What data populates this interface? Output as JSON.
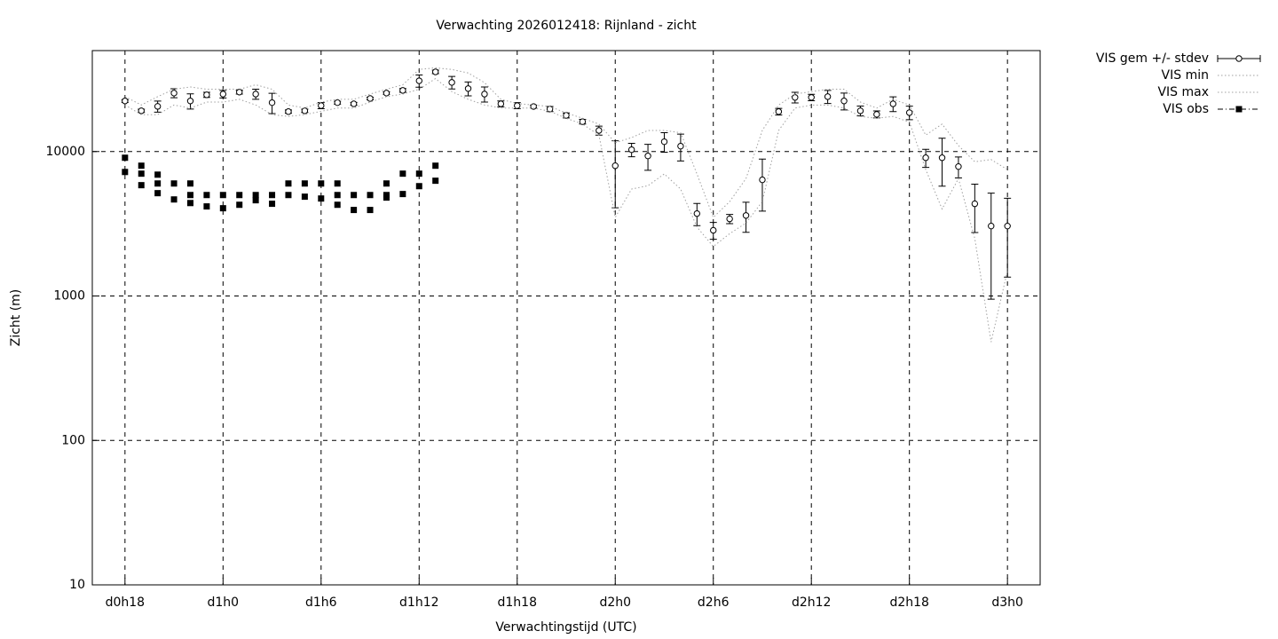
{
  "chart_data": {
    "type": "line",
    "title": "Verwachting 2026012418: Rijnland - zicht",
    "xlabel": "Verwachtingstijd (UTC)",
    "ylabel": "Zicht (m)",
    "xlim": [
      16,
      74
    ],
    "ylim": [
      10,
      50000
    ],
    "log_y": true,
    "grid": true,
    "legend": "outside-right",
    "xticks": [
      {
        "value": 18,
        "label": "d0h18"
      },
      {
        "value": 24,
        "label": "d1h0"
      },
      {
        "value": 30,
        "label": "d1h6"
      },
      {
        "value": 36,
        "label": "d1h12"
      },
      {
        "value": 42,
        "label": "d1h18"
      },
      {
        "value": 48,
        "label": "d2h0"
      },
      {
        "value": 54,
        "label": "d2h6"
      },
      {
        "value": 60,
        "label": "d2h12"
      },
      {
        "value": 66,
        "label": "d2h18"
      },
      {
        "value": 72,
        "label": "d3h0"
      }
    ],
    "yticks": [
      10,
      100,
      1000,
      10000
    ],
    "x": [
      18,
      19,
      20,
      21,
      22,
      23,
      24,
      25,
      26,
      27,
      28,
      29,
      30,
      31,
      32,
      33,
      34,
      35,
      36,
      37,
      38,
      39,
      40,
      41,
      42,
      43,
      44,
      45,
      46,
      47,
      48,
      49,
      50,
      51,
      52,
      53,
      54,
      55,
      56,
      57,
      58,
      59,
      60,
      61,
      62,
      63,
      64,
      65,
      66,
      67,
      68,
      69,
      70,
      71,
      72
    ],
    "series": [
      {
        "name": "VIS gem +/- stdev",
        "style": "errorbars",
        "color": "#000000",
        "values": [
          22400,
          19150,
          20550,
          25400,
          22400,
          24700,
          25000,
          25800,
          25000,
          21800,
          18900,
          19150,
          20800,
          21800,
          21400,
          23300,
          25400,
          26500,
          30900,
          35600,
          30100,
          27300,
          25000,
          21400,
          20800,
          20500,
          19700,
          17800,
          16100,
          14000,
          7980,
          10300,
          9320,
          11700,
          10900,
          3720,
          2850,
          3420,
          3610,
          6370,
          18900,
          23700,
          23700,
          24000,
          22400,
          19150,
          18100,
          21400,
          18600,
          9060,
          9060,
          7870,
          4350,
          3050,
          3050
        ],
        "errors": [
          500,
          500,
          1800,
          1800,
          2700,
          1000,
          1500,
          800,
          2000,
          3500,
          500,
          500,
          1000,
          500,
          500,
          500,
          500,
          800,
          3000,
          1000,
          3000,
          3000,
          3000,
          1000,
          1000,
          500,
          800,
          700,
          600,
          1000,
          3900,
          1100,
          1900,
          1800,
          2300,
          650,
          380,
          250,
          850,
          2500,
          1000,
          2000,
          1200,
          2500,
          3000,
          1500,
          1000,
          2500,
          2000,
          1300,
          3300,
          1300,
          1600,
          2100,
          1700
        ]
      },
      {
        "name": "VIS min",
        "style": "dotted",
        "color": "#a0a0a0",
        "values": [
          21000,
          18000,
          18000,
          21000,
          20000,
          22000,
          22000,
          23000,
          21000,
          18000,
          17500,
          18000,
          19000,
          20000,
          20000,
          22000,
          24000,
          25000,
          27000,
          32000,
          26000,
          23000,
          21000,
          20000,
          20000,
          20000,
          19000,
          17000,
          15500,
          13000,
          3500,
          5500,
          5800,
          7000,
          5500,
          3000,
          2200,
          2700,
          3200,
          4500,
          14000,
          20000,
          21000,
          21000,
          20000,
          17500,
          17000,
          17500,
          16000,
          7500,
          4000,
          6500,
          2500,
          480,
          1500
        ]
      },
      {
        "name": "VIS max",
        "style": "dotted",
        "color": "#a0a0a0",
        "values": [
          24000,
          21000,
          24000,
          27000,
          28000,
          27000,
          27000,
          27000,
          29000,
          27000,
          21000,
          20000,
          22000,
          23000,
          23000,
          25000,
          27000,
          29000,
          37000,
          38000,
          37000,
          35000,
          30000,
          23000,
          21500,
          21000,
          20500,
          18500,
          17000,
          15500,
          11500,
          12500,
          14000,
          14000,
          13500,
          7000,
          3500,
          4500,
          6500,
          14000,
          21000,
          25000,
          26000,
          27000,
          27000,
          22000,
          20000,
          23000,
          21000,
          13000,
          15500,
          11000,
          8500,
          8800,
          7500
        ]
      },
      {
        "name": "VIS obs",
        "style": "points",
        "color": "#000000",
        "x": [
          18,
          18,
          19,
          19,
          19,
          20,
          20,
          20,
          21,
          21,
          22,
          22,
          22,
          23,
          23,
          24,
          24,
          25,
          25,
          26,
          26,
          27,
          27,
          28,
          28,
          29,
          29,
          30,
          30,
          31,
          31,
          31,
          32,
          32,
          33,
          33,
          34,
          34,
          34,
          35,
          35,
          36,
          36,
          37,
          37
        ],
        "values": [
          9060,
          7220,
          7980,
          7030,
          5850,
          6920,
          6010,
          5150,
          6010,
          4660,
          6010,
          5000,
          4400,
          5000,
          4170,
          5000,
          4050,
          5000,
          4280,
          5000,
          4600,
          5000,
          4350,
          6010,
          5000,
          6010,
          4870,
          6010,
          4730,
          6010,
          5000,
          4280,
          5000,
          3940,
          5000,
          3940,
          6010,
          5000,
          4800,
          7030,
          5080,
          7030,
          5760,
          7980,
          6280
        ]
      }
    ]
  }
}
